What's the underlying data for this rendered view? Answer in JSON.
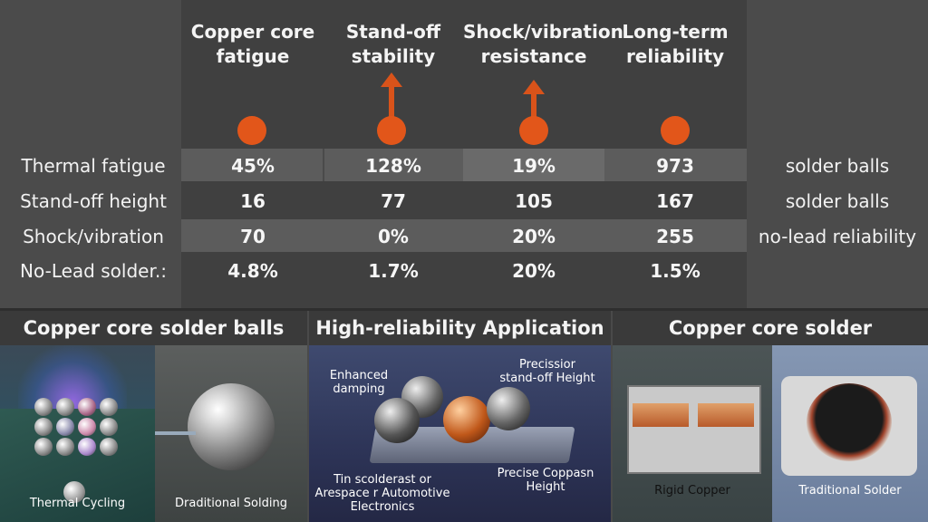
{
  "columns": [
    {
      "label_line1": "Copper core",
      "label_line2": "fatigue",
      "marker": "dot"
    },
    {
      "label_line1": "Stand-off",
      "label_line2": "stability",
      "marker": "arrow-up"
    },
    {
      "label_line1": "Shock/vibration",
      "label_line2": "resistance",
      "marker": "arrow-up"
    },
    {
      "label_line1": "Long-term",
      "label_line2": "reliability",
      "marker": "dot"
    }
  ],
  "rows": [
    {
      "label": "Thermal fatigue",
      "values": [
        "45%",
        "128%",
        "19%",
        "973"
      ],
      "right": "solder balls"
    },
    {
      "label": "Stand-off height",
      "values": [
        "16",
        "77",
        "105",
        "167"
      ],
      "right": "solder balls"
    },
    {
      "label": "Shock/vibration",
      "values": [
        "70",
        "0%",
        "20%",
        "255"
      ],
      "right": "no-lead reliability"
    },
    {
      "label": "No-Lead solder.:",
      "values": [
        "4.8%",
        "1.7%",
        "20%",
        "1.5%"
      ],
      "right": ""
    }
  ],
  "sections": [
    {
      "title": "Copper core solder balls"
    },
    {
      "title": "High-reliability Application"
    },
    {
      "title": "Copper core solder"
    }
  ],
  "panels": {
    "thermal_cycling": "Thermal Cycling",
    "traditional_solding": "Draditional Solding",
    "application": {
      "enhanced_line1": "Enhanced",
      "enhanced_line2": "damping",
      "precision_line1": "Precissior",
      "precision_line2": "stand-off Height",
      "tin_line1": "Tin scolderast or",
      "tin_line2": "Arespace r Automotive",
      "tin_line3": "Electronics",
      "precise_line1": "Precise Coppasn",
      "precise_line2": "Height"
    },
    "rigid_copper": "Rigid Copper",
    "traditional_solder": "Traditional Solder"
  },
  "colors": {
    "accent": "#e2561a",
    "background": "#4a4a4a",
    "band": "#5c5c5c"
  }
}
